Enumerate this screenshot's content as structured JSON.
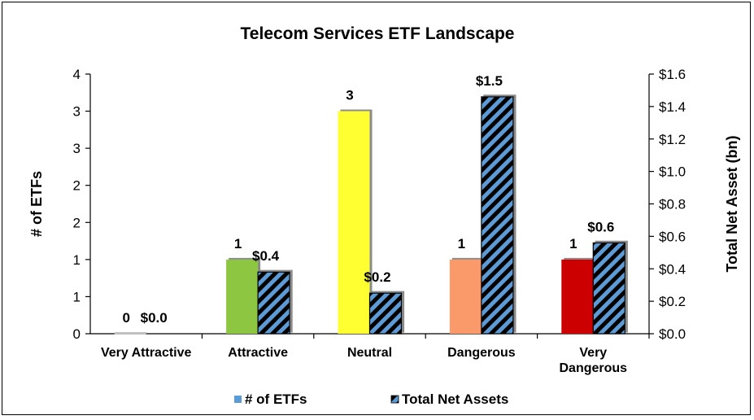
{
  "chart_data": {
    "type": "bar",
    "title": "Telecom Services ETF Landscape",
    "categories": [
      "Very Attractive",
      "Attractive",
      "Neutral",
      "Dangerous",
      "Very Dangerous"
    ],
    "category_lines": [
      [
        "Very Attractive"
      ],
      [
        "Attractive"
      ],
      [
        "Neutral"
      ],
      [
        "Dangerous"
      ],
      [
        "Very",
        "Dangerous"
      ]
    ],
    "ylabel": "# of ETFs",
    "y2label": "Total Net Asset (bn)",
    "ylim": [
      0,
      3.5
    ],
    "y_ticks": [
      0,
      0.5,
      1,
      1.5,
      2,
      2.5,
      3,
      3.5
    ],
    "y_tick_labels": [
      "0",
      "1",
      "1",
      "2",
      "2",
      "3",
      "3",
      "4"
    ],
    "y2lim": [
      0,
      1.6
    ],
    "y2_ticks": [
      0,
      0.2,
      0.4,
      0.6,
      0.8,
      1.0,
      1.2,
      1.4,
      1.6
    ],
    "y2_tick_labels": [
      "$0.0",
      "$0.2",
      "$0.4",
      "$0.6",
      "$0.8",
      "$1.0",
      "$1.2",
      "$1.4",
      "$1.6"
    ],
    "series": [
      {
        "name": "# of ETFs",
        "axis": "left",
        "values": [
          0,
          1,
          3,
          1,
          1
        ],
        "labels": [
          "0",
          "1",
          "3",
          "1",
          "1"
        ],
        "colors": [
          "#c0c0c0",
          "#8dc63f",
          "#ffff33",
          "#fa9a6b",
          "#cc0000"
        ],
        "legend_color": "#5b9bd5"
      },
      {
        "name": "Total Net Assets",
        "axis": "right",
        "pattern": "hatched",
        "values": [
          0.0,
          0.38,
          0.25,
          1.46,
          0.56
        ],
        "labels": [
          "$0.0",
          "$0.4",
          "$0.2",
          "$1.5",
          "$0.6"
        ],
        "colors": [
          "#5b9bd5",
          "#000000"
        ]
      }
    ],
    "legend_position": "bottom",
    "grid": false
  }
}
